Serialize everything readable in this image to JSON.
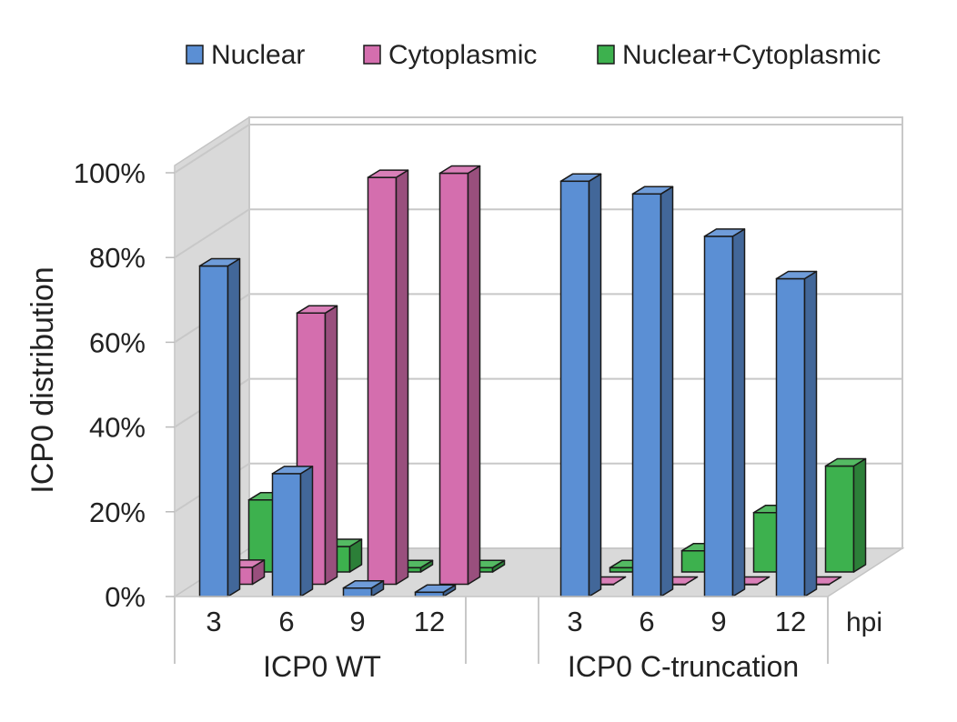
{
  "chart_data": {
    "type": "bar",
    "title": "",
    "ylabel": "ICP0 distribution",
    "xlabel": "hpi",
    "ylim": [
      0,
      100
    ],
    "yticks": [
      "0%",
      "20%",
      "40%",
      "60%",
      "80%",
      "100%"
    ],
    "grid": true,
    "legend_position": "top",
    "groups": [
      {
        "label": "ICP0 WT",
        "categories": [
          "3",
          "6",
          "9",
          "12"
        ]
      },
      {
        "label": "ICP0 C-truncation",
        "categories": [
          "3",
          "6",
          "9",
          "12"
        ]
      }
    ],
    "series": [
      {
        "name": "Nuclear",
        "color": "#5b8fd4",
        "values": [
          78,
          29,
          2,
          1,
          98,
          95,
          85,
          75
        ]
      },
      {
        "name": "Cytoplasmic",
        "color": "#d46eae",
        "values": [
          4,
          64,
          96,
          97,
          0,
          0,
          0,
          0
        ]
      },
      {
        "name": "Nuclear+Cytoplasmic",
        "color": "#3db14e",
        "values": [
          17,
          6,
          1,
          1,
          1,
          5,
          14,
          25
        ]
      }
    ]
  }
}
